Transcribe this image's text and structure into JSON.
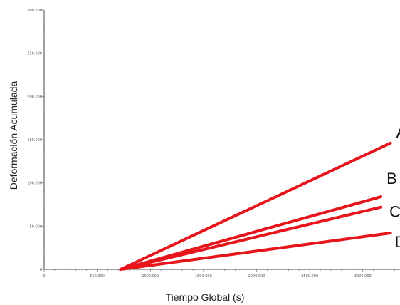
{
  "chart_data": {
    "type": "line",
    "xlabel": "Tiempo Global (s)",
    "ylabel": "Deformación Acumulada",
    "xlim": [
      0,
      3350000
    ],
    "ylim": [
      0,
      300
    ],
    "x_ticks": [
      {
        "value": 0,
        "label": "0"
      },
      {
        "value": 500000,
        "label": "500.000"
      },
      {
        "value": 1000000,
        "label": "1000.000"
      },
      {
        "value": 1500000,
        "label": "1500.000"
      },
      {
        "value": 2000000,
        "label": "2000.000"
      },
      {
        "value": 2500000,
        "label": "2500.000"
      },
      {
        "value": 3000000,
        "label": "3000.000"
      }
    ],
    "y_ticks": [
      {
        "value": 0,
        "label": "0"
      },
      {
        "value": 50,
        "label": "50.000"
      },
      {
        "value": 100,
        "label": "100.000"
      },
      {
        "value": 150,
        "label": "150.000"
      },
      {
        "value": 200,
        "label": "200.000"
      },
      {
        "value": 250,
        "label": "250.000"
      },
      {
        "value": 300,
        "label": "300.000"
      }
    ],
    "series": [
      {
        "name": "A",
        "color": "#e8141b",
        "x": [
          720000,
          3260000
        ],
        "y": [
          0,
          146
        ]
      },
      {
        "name": "B",
        "color": "#e8141b",
        "x": [
          720000,
          3170000
        ],
        "y": [
          0,
          84
        ]
      },
      {
        "name": "C",
        "color": "#e8141b",
        "x": [
          720000,
          3170000
        ],
        "y": [
          0,
          72
        ]
      },
      {
        "name": "D",
        "color": "#e8141b",
        "x": [
          720000,
          3260000
        ],
        "y": [
          0,
          42
        ]
      }
    ],
    "grid": false,
    "legend": "inline labels at line ends"
  }
}
